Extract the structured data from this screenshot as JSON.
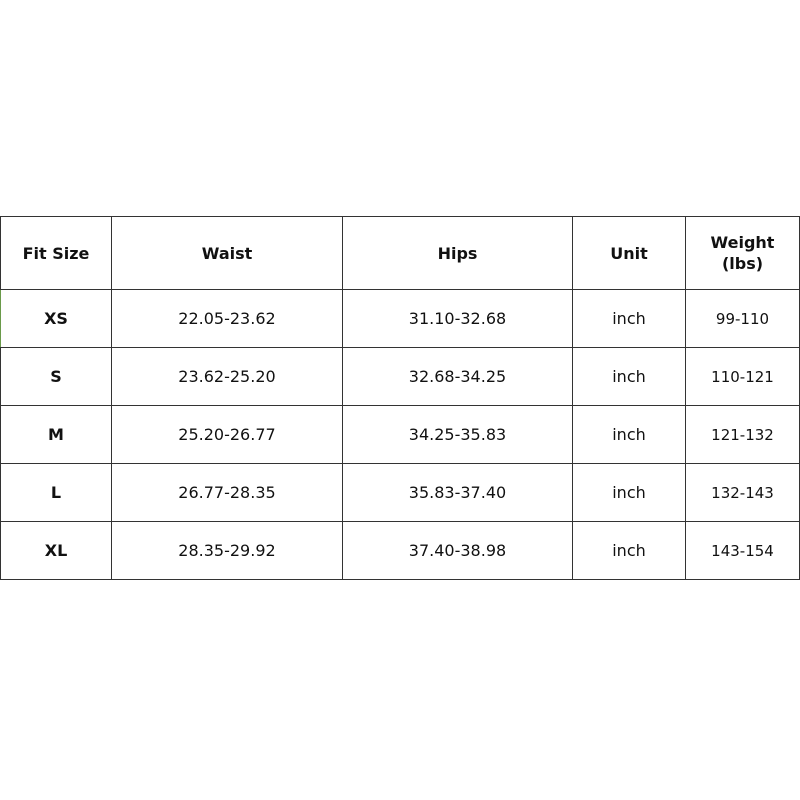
{
  "headers": {
    "fit_size": "Fit Size",
    "waist": "Waist",
    "hips": "Hips",
    "unit": "Unit",
    "weight_line1": "Weight",
    "weight_line2": "(lbs)"
  },
  "rows": [
    {
      "size": "XS",
      "waist": "22.05-23.62",
      "hips": "31.10-32.68",
      "unit": "inch",
      "weight": "99-110"
    },
    {
      "size": "S",
      "waist": "23.62-25.20",
      "hips": "32.68-34.25",
      "unit": "inch",
      "weight": "110-121"
    },
    {
      "size": "M",
      "waist": "25.20-26.77",
      "hips": "34.25-35.83",
      "unit": "inch",
      "weight": "121-132"
    },
    {
      "size": "L",
      "waist": "26.77-28.35",
      "hips": "35.83-37.40",
      "unit": "inch",
      "weight": "132-143"
    },
    {
      "size": "XL",
      "waist": "28.35-29.92",
      "hips": "37.40-38.98",
      "unit": "inch",
      "weight": "143-154"
    }
  ]
}
